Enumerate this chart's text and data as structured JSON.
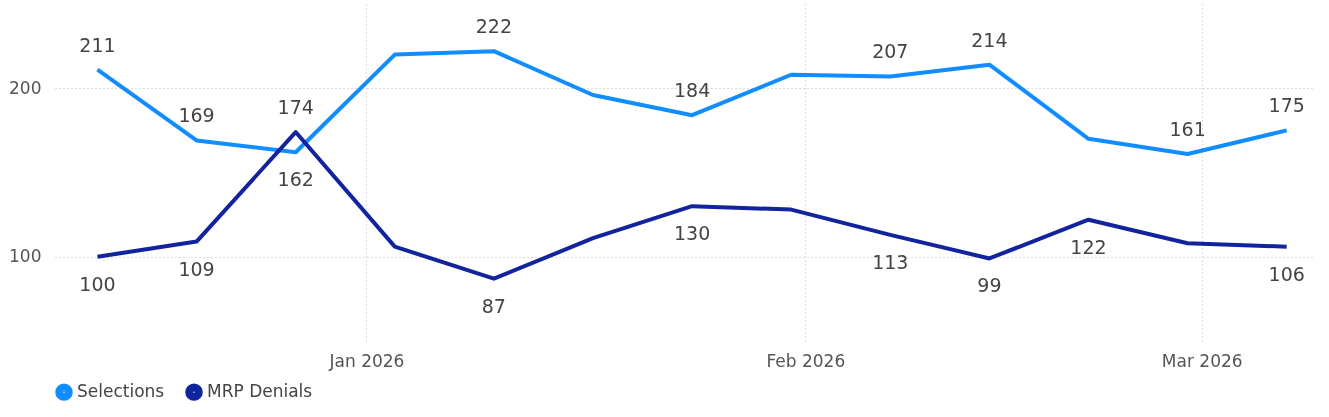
{
  "chart_data": {
    "type": "line",
    "x": [
      "2025-12-13",
      "2025-12-20",
      "2025-12-27",
      "2026-01-03",
      "2026-01-10",
      "2026-01-17",
      "2026-01-24",
      "2026-01-31",
      "2026-02-07",
      "2026-02-14",
      "2026-02-21",
      "2026-02-28",
      "2026-03-07"
    ],
    "series": [
      {
        "name": "Selections",
        "color": "#118dff",
        "values": [
          211,
          169,
          162,
          220,
          222,
          196,
          184,
          208,
          207,
          214,
          170,
          161,
          175
        ],
        "value_labels": [
          "211",
          "169",
          "162",
          null,
          "222",
          null,
          "184",
          null,
          "207",
          "214",
          null,
          "161",
          "175"
        ]
      },
      {
        "name": "MRP Denials",
        "color": "#12239e",
        "values": [
          100,
          109,
          174,
          106,
          87,
          111,
          130,
          128,
          113,
          99,
          122,
          108,
          106
        ],
        "value_labels": [
          "100",
          "109",
          "174",
          null,
          "87",
          null,
          "130",
          null,
          "113",
          "99",
          "122",
          null,
          "106"
        ]
      }
    ],
    "xlim": [
      "2025-12-10",
      "2026-03-09"
    ],
    "xticks": [
      {
        "value": "2026-01-01",
        "label": "Jan 2026"
      },
      {
        "value": "2026-02-01",
        "label": "Feb 2026"
      },
      {
        "value": "2026-03-01",
        "label": "Mar 2026"
      }
    ],
    "ylim": [
      50,
      250
    ],
    "yticks": [
      100,
      200
    ],
    "grid": true,
    "legend": "bottom",
    "marker": "none",
    "line_style": "solid"
  }
}
